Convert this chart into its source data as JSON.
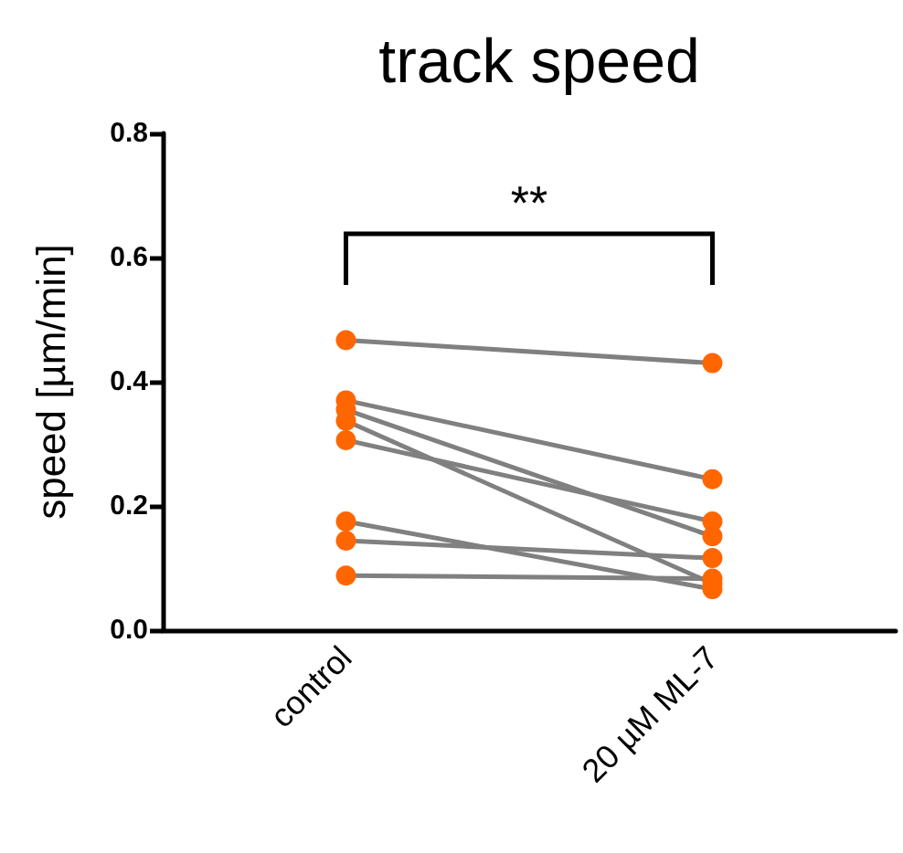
{
  "chart_data": {
    "type": "line",
    "title": "track speed",
    "ylabel": "speed [µm/min]",
    "categories": [
      "control",
      "20 µM ML-7"
    ],
    "series": [
      {
        "color": "#ff6600",
        "values": [
          0.467,
          0.43
        ]
      },
      {
        "color": "#ff6600",
        "values": [
          0.37,
          0.243
        ]
      },
      {
        "color": "#ff6600",
        "values": [
          0.355,
          0.151
        ]
      },
      {
        "color": "#ff6600",
        "values": [
          0.337,
          0.075
        ]
      },
      {
        "color": "#ff6600",
        "values": [
          0.306,
          0.175
        ]
      },
      {
        "color": "#ff6600",
        "values": [
          0.175,
          0.066
        ]
      },
      {
        "color": "#ff6600",
        "values": [
          0.144,
          0.116
        ]
      },
      {
        "color": "#ff6600",
        "values": [
          0.088,
          0.083
        ]
      }
    ],
    "ylim": [
      0,
      0.8
    ],
    "yticks": [
      {
        "value": 0,
        "label": "0.0"
      },
      {
        "value": 0.2,
        "label": "0.2"
      },
      {
        "value": 0.4,
        "label": "0.4"
      },
      {
        "value": 0.6,
        "label": "0.6"
      },
      {
        "value": 0.8,
        "label": "0.8"
      }
    ],
    "grid": false,
    "marker": "circle",
    "line_style": "solid",
    "annotations": [
      "**"
    ]
  }
}
